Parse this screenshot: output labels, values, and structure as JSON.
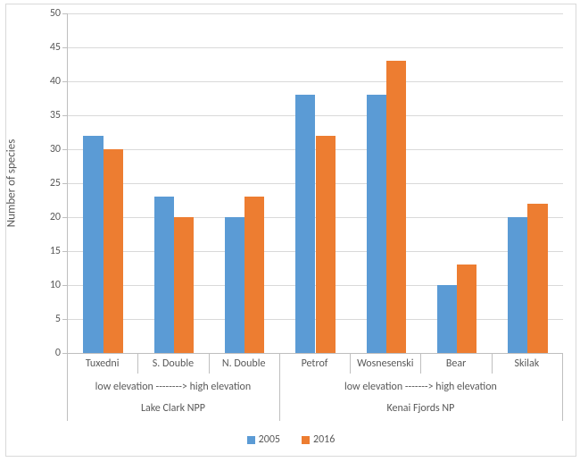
{
  "chart": {
    "type": "bar",
    "background_color": "#ffffff",
    "plot_border_color": "#bfbfbf",
    "grid_color": "#d9d9d9",
    "text_color": "#595959",
    "ylabel": "Number of species",
    "label_fontsize": 13,
    "tick_fontsize": 12,
    "ylim": [
      0,
      50
    ],
    "ytick_step": 5,
    "bar_width": 0.28,
    "series": [
      {
        "name": "2005",
        "color": "#5b9bd5"
      },
      {
        "name": "2016",
        "color": "#ed7d31"
      }
    ],
    "categories": [
      "Tuxedni",
      "S. Double",
      "N. Double",
      "Petrof",
      "Wosnesenski",
      "Bear",
      "Skilak"
    ],
    "values": {
      "2005": [
        32,
        23,
        20,
        38,
        38,
        10,
        20
      ],
      "2016": [
        30,
        20,
        23,
        32,
        43,
        13,
        22
      ]
    },
    "sub_groups": [
      {
        "label": "low elevation --------> high elevation",
        "span": [
          0,
          2
        ]
      },
      {
        "label": "low elevation -------> high elevation",
        "span": [
          3,
          6
        ]
      }
    ],
    "groups": [
      {
        "label": "Lake Clark NPP",
        "span": [
          0,
          2
        ]
      },
      {
        "label": "Kenai Fjords NP",
        "span": [
          3,
          6
        ]
      }
    ],
    "legend_position": "bottom"
  }
}
